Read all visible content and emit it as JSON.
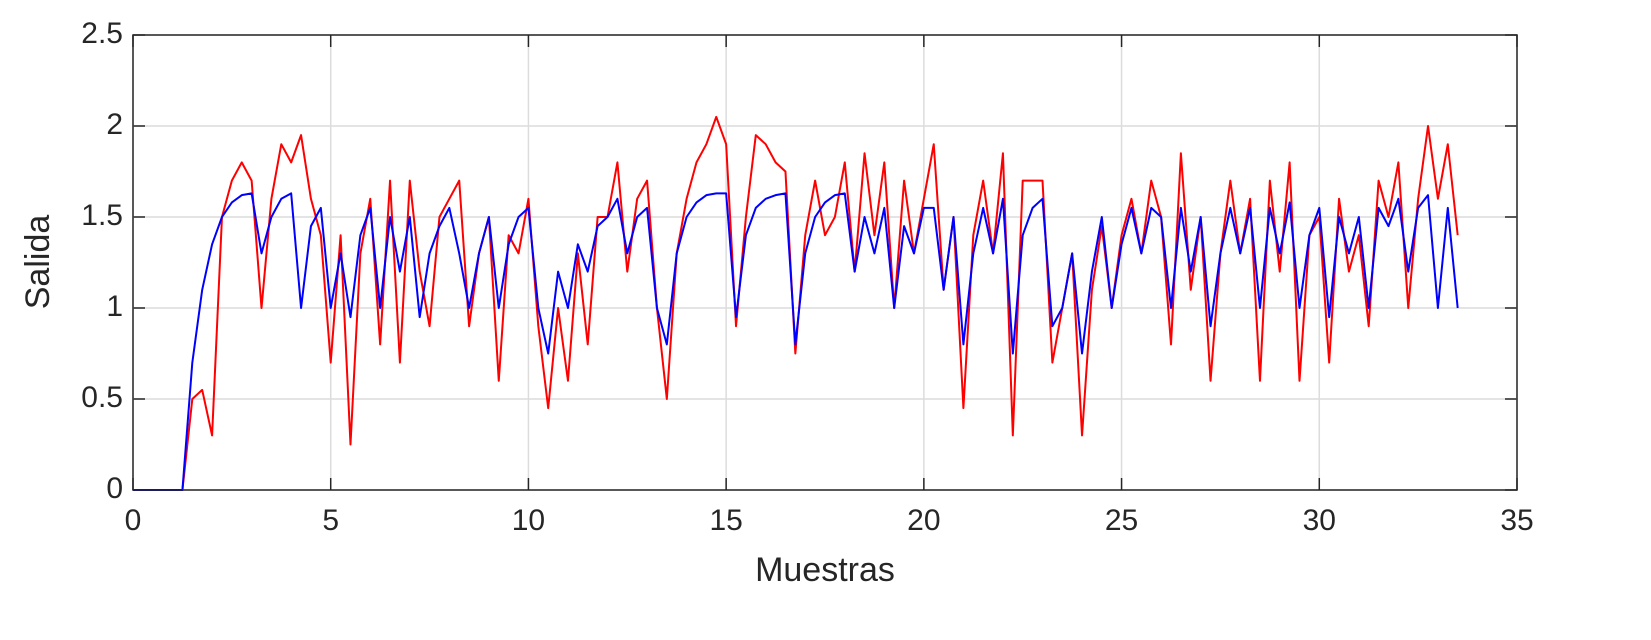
{
  "chart_data": {
    "type": "line",
    "xlabel": "Muestras",
    "ylabel": "Salida",
    "x": [
      0,
      0.25,
      0.5,
      0.75,
      1,
      1.25,
      1.5,
      1.75,
      2,
      2.25,
      2.5,
      2.75,
      3,
      3.25,
      3.5,
      3.75,
      4,
      4.25,
      4.5,
      4.75,
      5,
      5.25,
      5.5,
      5.75,
      6,
      6.25,
      6.5,
      6.75,
      7,
      7.25,
      7.5,
      7.75,
      8,
      8.25,
      8.5,
      8.75,
      9,
      9.25,
      9.5,
      9.75,
      10,
      10.25,
      10.5,
      10.75,
      11,
      11.25,
      11.5,
      11.75,
      12,
      12.25,
      12.5,
      12.75,
      13,
      13.25,
      13.5,
      13.75,
      14,
      14.25,
      14.5,
      14.75,
      15,
      15.25,
      15.5,
      15.75,
      16,
      16.25,
      16.5,
      16.75,
      17,
      17.25,
      17.5,
      17.75,
      18,
      18.25,
      18.5,
      18.75,
      19,
      19.25,
      19.5,
      19.75,
      20,
      20.25,
      20.5,
      20.75,
      21,
      21.25,
      21.5,
      21.75,
      22,
      22.25,
      22.5,
      22.75,
      23,
      23.25,
      23.5,
      23.75,
      24,
      24.25,
      24.5,
      24.75,
      25,
      25.25,
      25.5,
      25.75,
      26,
      26.25,
      26.5,
      26.75,
      27,
      27.25,
      27.5,
      27.75,
      28,
      28.25,
      28.5,
      28.75,
      29,
      29.25,
      29.5,
      29.75,
      30,
      30.25,
      30.5,
      30.75,
      31,
      31.25,
      31.5,
      31.75,
      32,
      32.25,
      32.5,
      32.75,
      33,
      33.25,
      33.5
    ],
    "series": [
      {
        "color": "#ff0000",
        "values": [
          0,
          0,
          0,
          0,
          0,
          0,
          0.5,
          0.55,
          0.3,
          1.5,
          1.7,
          1.8,
          1.7,
          1.0,
          1.6,
          1.9,
          1.8,
          1.95,
          1.6,
          1.4,
          0.7,
          1.4,
          0.25,
          1.3,
          1.6,
          0.8,
          1.7,
          0.7,
          1.7,
          1.2,
          0.9,
          1.5,
          1.6,
          1.7,
          0.9,
          1.3,
          1.5,
          0.6,
          1.4,
          1.3,
          1.6,
          0.9,
          0.45,
          1.0,
          0.6,
          1.3,
          0.8,
          1.5,
          1.5,
          1.8,
          1.2,
          1.6,
          1.7,
          1.0,
          0.5,
          1.3,
          1.6,
          1.8,
          1.9,
          2.05,
          1.9,
          0.9,
          1.5,
          1.95,
          1.9,
          1.8,
          1.75,
          0.75,
          1.4,
          1.7,
          1.4,
          1.5,
          1.8,
          1.2,
          1.85,
          1.4,
          1.8,
          1.0,
          1.7,
          1.3,
          1.6,
          1.9,
          1.1,
          1.5,
          0.45,
          1.4,
          1.7,
          1.3,
          1.85,
          0.3,
          1.7,
          1.7,
          1.7,
          0.7,
          1.0,
          1.3,
          0.3,
          1.1,
          1.45,
          1.0,
          1.4,
          1.6,
          1.3,
          1.7,
          1.5,
          0.8,
          1.85,
          1.1,
          1.5,
          0.6,
          1.3,
          1.7,
          1.3,
          1.6,
          0.6,
          1.7,
          1.2,
          1.8,
          0.6,
          1.4,
          1.5,
          0.7,
          1.6,
          1.2,
          1.4,
          0.9,
          1.7,
          1.5,
          1.8,
          1.0,
          1.6,
          2.0,
          1.6,
          1.9,
          1.4
        ]
      },
      {
        "color": "#0000ff",
        "values": [
          0,
          0,
          0,
          0,
          0,
          0,
          0.7,
          1.1,
          1.35,
          1.5,
          1.58,
          1.62,
          1.63,
          1.3,
          1.5,
          1.6,
          1.63,
          1.0,
          1.45,
          1.55,
          1.0,
          1.3,
          0.95,
          1.4,
          1.55,
          1.0,
          1.5,
          1.2,
          1.5,
          0.95,
          1.3,
          1.45,
          1.55,
          1.3,
          1.0,
          1.3,
          1.5,
          1.0,
          1.35,
          1.5,
          1.55,
          1.0,
          0.75,
          1.2,
          1.0,
          1.35,
          1.2,
          1.45,
          1.5,
          1.6,
          1.3,
          1.5,
          1.55,
          1.0,
          0.8,
          1.3,
          1.5,
          1.58,
          1.62,
          1.63,
          1.63,
          0.95,
          1.4,
          1.55,
          1.6,
          1.62,
          1.63,
          0.8,
          1.3,
          1.5,
          1.58,
          1.62,
          1.63,
          1.2,
          1.5,
          1.3,
          1.55,
          1.0,
          1.45,
          1.3,
          1.55,
          1.55,
          1.1,
          1.5,
          0.8,
          1.3,
          1.55,
          1.3,
          1.6,
          0.75,
          1.4,
          1.55,
          1.6,
          0.9,
          1.0,
          1.3,
          0.75,
          1.2,
          1.5,
          1.0,
          1.35,
          1.55,
          1.3,
          1.55,
          1.5,
          1.0,
          1.55,
          1.2,
          1.5,
          0.9,
          1.3,
          1.55,
          1.3,
          1.55,
          1.0,
          1.55,
          1.3,
          1.58,
          1.0,
          1.4,
          1.55,
          0.95,
          1.5,
          1.3,
          1.5,
          1.0,
          1.55,
          1.45,
          1.6,
          1.2,
          1.55,
          1.62,
          1.0,
          1.55,
          1.0
        ]
      }
    ],
    "xlim": [
      0,
      35
    ],
    "xticks": [
      0,
      5,
      10,
      15,
      20,
      25,
      30,
      35
    ],
    "ylim": [
      0,
      2.5
    ],
    "yticks": [
      0,
      0.5,
      1,
      1.5,
      2,
      2.5
    ],
    "grid": true
  }
}
